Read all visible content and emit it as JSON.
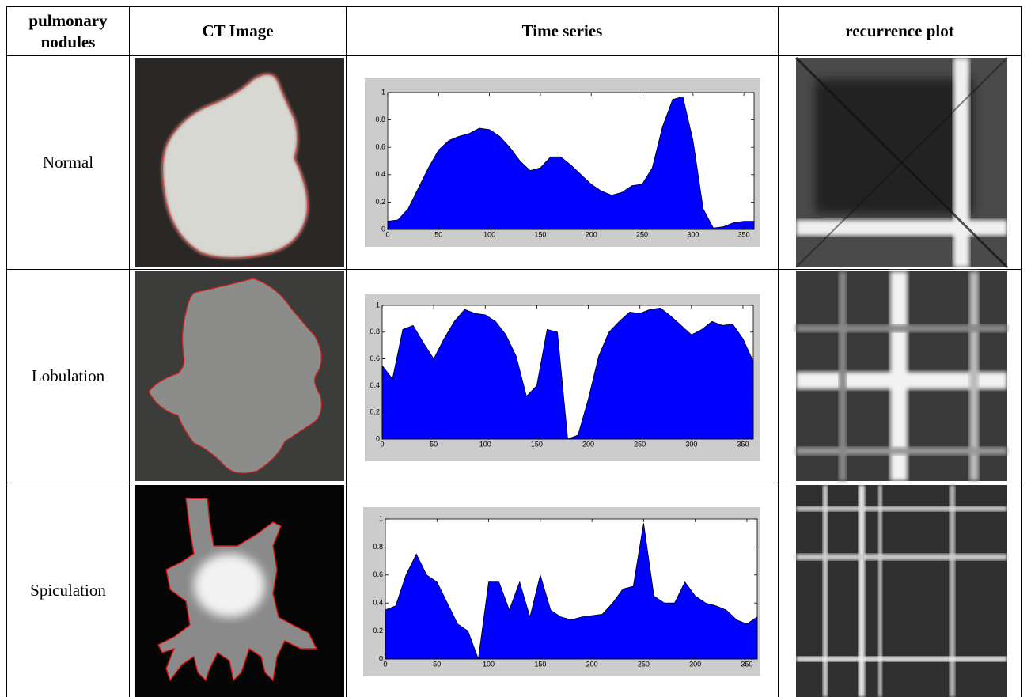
{
  "table": {
    "header": [
      "pulmonary nodules",
      "CT Image",
      "Time series",
      "recurrence plot"
    ],
    "rows": [
      {
        "label": "Normal",
        "time_series": {
          "type": "area",
          "color": "#0000ff",
          "x": [
            0,
            10,
            20,
            30,
            40,
            50,
            60,
            70,
            80,
            90,
            100,
            110,
            120,
            130,
            140,
            150,
            160,
            170,
            180,
            190,
            200,
            210,
            220,
            230,
            240,
            250,
            260,
            270,
            280,
            290,
            300,
            310,
            320,
            330,
            340,
            350,
            360
          ],
          "values": [
            0.06,
            0.07,
            0.15,
            0.3,
            0.45,
            0.58,
            0.65,
            0.68,
            0.7,
            0.74,
            0.73,
            0.68,
            0.6,
            0.5,
            0.43,
            0.45,
            0.53,
            0.53,
            0.47,
            0.4,
            0.33,
            0.28,
            0.25,
            0.27,
            0.32,
            0.33,
            0.45,
            0.75,
            0.95,
            0.97,
            0.65,
            0.15,
            0.01,
            0.02,
            0.05,
            0.06,
            0.06
          ],
          "xlim": [
            0,
            360
          ],
          "ylim": [
            0,
            1
          ],
          "xticks": [
            0,
            50,
            100,
            150,
            200,
            250,
            300,
            350
          ],
          "yticks": [
            0,
            0.2,
            0.4,
            0.6,
            0.8,
            1
          ]
        }
      },
      {
        "label": "Lobulation",
        "time_series": {
          "type": "area",
          "color": "#0000ff",
          "x": [
            0,
            10,
            20,
            30,
            40,
            50,
            60,
            70,
            80,
            90,
            100,
            110,
            120,
            130,
            140,
            150,
            160,
            170,
            180,
            190,
            200,
            210,
            220,
            230,
            240,
            250,
            260,
            270,
            280,
            290,
            300,
            310,
            320,
            330,
            340,
            350,
            360
          ],
          "values": [
            0.55,
            0.45,
            0.82,
            0.85,
            0.72,
            0.6,
            0.75,
            0.88,
            0.97,
            0.94,
            0.93,
            0.88,
            0.78,
            0.62,
            0.32,
            0.4,
            0.82,
            0.8,
            0,
            0.03,
            0.3,
            0.62,
            0.8,
            0.88,
            0.95,
            0.94,
            0.97,
            0.98,
            0.92,
            0.85,
            0.78,
            0.82,
            0.88,
            0.85,
            0.86,
            0.75,
            0.58
          ],
          "xlim": [
            0,
            360
          ],
          "ylim": [
            0,
            1
          ],
          "xticks": [
            0,
            50,
            100,
            150,
            200,
            250,
            300,
            350
          ],
          "yticks": [
            0,
            0.2,
            0.4,
            0.6,
            0.8,
            1
          ]
        }
      },
      {
        "label": "Spiculation",
        "time_series": {
          "type": "area",
          "color": "#0000ff",
          "x": [
            0,
            10,
            20,
            30,
            40,
            50,
            60,
            70,
            80,
            90,
            100,
            110,
            120,
            130,
            140,
            150,
            160,
            170,
            180,
            190,
            200,
            210,
            220,
            230,
            240,
            250,
            260,
            270,
            280,
            290,
            300,
            310,
            320,
            330,
            340,
            350,
            360
          ],
          "values": [
            0.35,
            0.38,
            0.6,
            0.75,
            0.6,
            0.55,
            0.4,
            0.25,
            0.2,
            0,
            0.55,
            0.55,
            0.35,
            0.55,
            0.3,
            0.6,
            0.35,
            0.3,
            0.28,
            0.3,
            0.31,
            0.32,
            0.4,
            0.5,
            0.52,
            0.97,
            0.45,
            0.4,
            0.4,
            0.55,
            0.45,
            0.4,
            0.38,
            0.35,
            0.28,
            0.25,
            0.3
          ],
          "xlim": [
            0,
            360
          ],
          "ylim": [
            0,
            1
          ],
          "xticks": [
            0,
            50,
            100,
            150,
            200,
            250,
            300,
            350
          ],
          "yticks": [
            0,
            0.2,
            0.4,
            0.6,
            0.8,
            1
          ]
        }
      }
    ]
  }
}
